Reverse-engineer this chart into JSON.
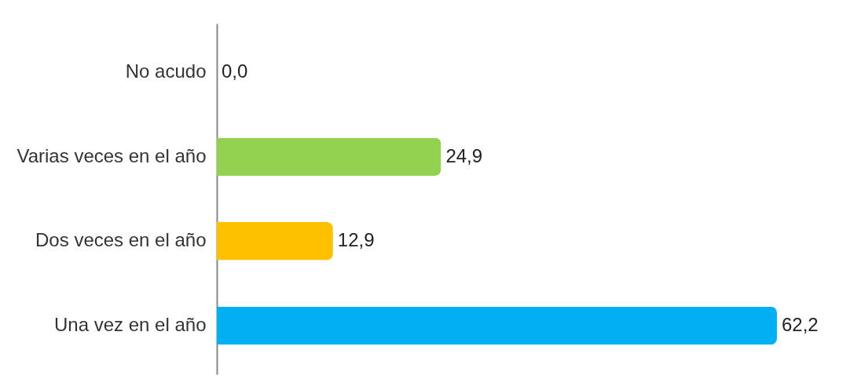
{
  "chart_data": {
    "type": "bar",
    "orientation": "horizontal",
    "categories": [
      "No acudo",
      "Varias veces en el año",
      "Dos veces en el año",
      "Una vez en el año"
    ],
    "values": [
      0.0,
      24.9,
      12.9,
      62.2
    ],
    "colors": [
      "#c00000",
      "#92d050",
      "#ffc000",
      "#00b0f0"
    ],
    "value_labels": [
      "0,0",
      "24,9",
      "12,9",
      "62,2"
    ]
  }
}
